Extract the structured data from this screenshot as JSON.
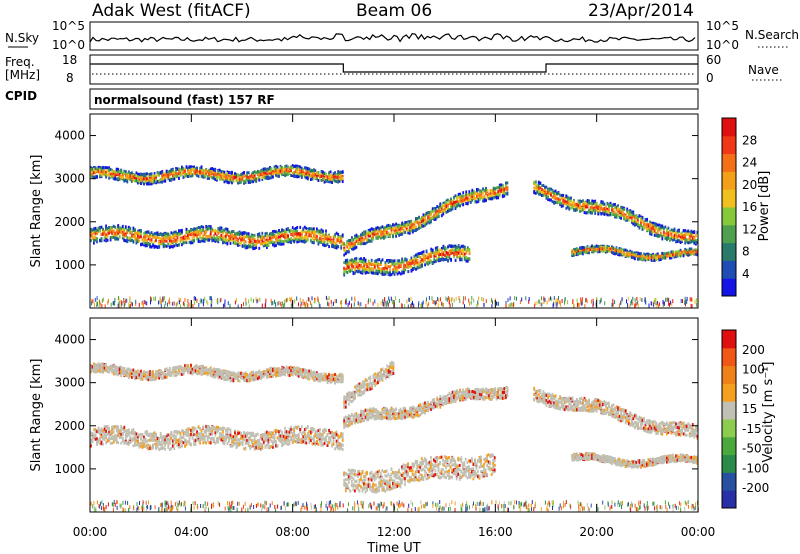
{
  "header": {
    "radar": "Adak West (fitACF)",
    "beam": "Beam 06",
    "date": "23/Apr/2014"
  },
  "status": {
    "nsky_label": "N.Sky",
    "nsky_ticks": [
      "10^5",
      "10^0"
    ],
    "nsearch_label": "N.Search",
    "nsearch_ticks": [
      "10^5",
      "10^0"
    ],
    "freq_label": "Freq.",
    "freq_unit": "[MHz]",
    "freq_ticks": [
      "18",
      "8"
    ],
    "nave_label": "Nave",
    "nave_ticks": [
      "60",
      "0"
    ],
    "cpid_label": "CPID",
    "cpid_value": "normalsound (fast) 157 RF"
  },
  "colors": {
    "power_scale": [
      "#1414e6",
      "#1e4eb4",
      "#2a7a6a",
      "#4ea04e",
      "#86c83c",
      "#f0c020",
      "#f2a018",
      "#f47018",
      "#f03818",
      "#e01010"
    ],
    "velocity_scale": [
      "#2830a8",
      "#2850a0",
      "#2a8a4a",
      "#4aa83c",
      "#8ccc50",
      "#c0c0b4",
      "#f4a020",
      "#f08018",
      "#f05818",
      "#e01010"
    ]
  },
  "chart_data": [
    {
      "type": "heatmap",
      "name": "power",
      "ylabel": "Slant Range [km]",
      "yticks": [
        "1000",
        "2000",
        "3000",
        "4000"
      ],
      "ylim": [
        0,
        4500
      ],
      "colorbar_label": "Power [dB]",
      "colorbar_ticks": [
        "4",
        "8",
        "12",
        "16",
        "20",
        "24",
        "28"
      ],
      "bands": [
        {
          "t": [
            0,
            10
          ],
          "range_start": 1700,
          "range_end": 1650,
          "width": 350
        },
        {
          "t": [
            0,
            10
          ],
          "range_start": 3100,
          "range_end": 3150,
          "width": 250
        },
        {
          "t": [
            10,
            16.5
          ],
          "range_start": 1400,
          "range_end": 2900,
          "width": 300
        },
        {
          "t": [
            10,
            15
          ],
          "range_start": 900,
          "range_end": 1300,
          "width": 350
        },
        {
          "t": [
            17.5,
            24
          ],
          "range_start": 2800,
          "range_end": 1600,
          "width": 300
        },
        {
          "t": [
            19,
            24
          ],
          "range_start": 1350,
          "range_end": 1250,
          "width": 150
        }
      ]
    },
    {
      "type": "heatmap",
      "name": "velocity",
      "ylabel": "Slant Range [km]",
      "xlabel": "Time UT",
      "xticks": [
        "00:00",
        "04:00",
        "08:00",
        "12:00",
        "16:00",
        "20:00",
        "00:00"
      ],
      "xlim": [
        0,
        24
      ],
      "yticks": [
        "1000",
        "2000",
        "3000",
        "4000"
      ],
      "ylim": [
        0,
        4500
      ],
      "colorbar_label": "Velocity [m s⁻¹]",
      "colorbar_ticks": [
        "200",
        "100",
        "50",
        "15",
        "-15",
        "-50",
        "-100",
        "-200"
      ],
      "bands": [
        {
          "t": [
            0,
            10
          ],
          "range_start": 1750,
          "range_end": 1750,
          "width": 400
        },
        {
          "t": [
            0,
            10
          ],
          "range_start": 3300,
          "range_end": 3200,
          "width": 200
        },
        {
          "t": [
            10,
            16.5
          ],
          "range_start": 2100,
          "range_end": 2900,
          "width": 250
        },
        {
          "t": [
            10,
            12
          ],
          "range_start": 2500,
          "range_end": 3500,
          "width": 300
        },
        {
          "t": [
            10,
            16
          ],
          "range_start": 700,
          "range_end": 1200,
          "width": 500
        },
        {
          "t": [
            17.5,
            24
          ],
          "range_start": 2800,
          "range_end": 1800,
          "width": 300
        },
        {
          "t": [
            19,
            24
          ],
          "range_start": 1250,
          "range_end": 1200,
          "width": 150
        }
      ]
    }
  ]
}
